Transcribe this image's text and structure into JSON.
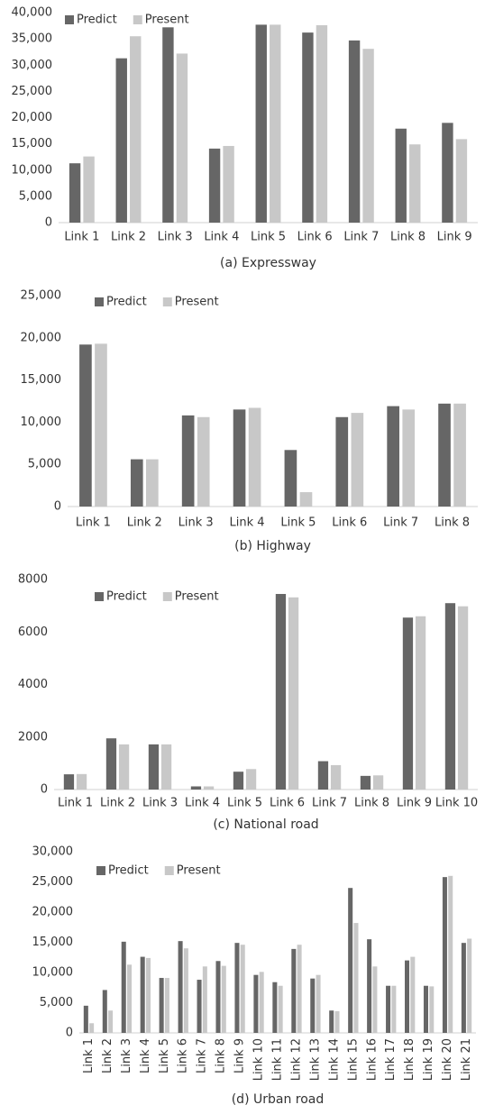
{
  "chart_data": [
    {
      "type": "bar",
      "caption": "(a) Expressway",
      "categories": [
        "Link 1",
        "Link 2",
        "Link 3",
        "Link 4",
        "Link 5",
        "Link 6",
        "Link 7",
        "Link 8",
        "Link 9"
      ],
      "series": [
        {
          "name": "Predict",
          "color": "#666666",
          "values": [
            11300,
            31300,
            37200,
            14100,
            37700,
            36200,
            34700,
            17900,
            19000
          ]
        },
        {
          "name": "Present",
          "color": "#c8c8c8",
          "values": [
            12600,
            35500,
            32200,
            14600,
            37700,
            37600,
            33100,
            14900,
            15900
          ]
        }
      ],
      "ylim": [
        0,
        40000
      ],
      "yticks": [
        0,
        {
          "value": 5000,
          "label": "5,000"
        },
        {
          "value": 10000,
          "label": "10,000"
        },
        {
          "value": 15000,
          "label": "15,000"
        },
        {
          "value": 20000,
          "label": "20,000"
        },
        {
          "value": 25000,
          "label": "25,000"
        },
        {
          "value": 30000,
          "label": "30,000"
        },
        {
          "value": 35000,
          "label": "35,000"
        },
        {
          "value": 40000,
          "label": "40,000"
        }
      ],
      "grid": false,
      "legend": "top-left"
    },
    {
      "type": "bar",
      "caption": "(b) Highway",
      "categories": [
        "Link 1",
        "Link 2",
        "Link 3",
        "Link 4",
        "Link 5",
        "Link 6",
        "Link 7",
        "Link 8"
      ],
      "series": [
        {
          "name": "Predict",
          "color": "#666666",
          "values": [
            19200,
            5600,
            10800,
            11500,
            6700,
            10600,
            11900,
            12200
          ]
        },
        {
          "name": "Present",
          "color": "#c8c8c8",
          "values": [
            19300,
            5600,
            10600,
            11700,
            1700,
            11100,
            11500,
            12200
          ]
        }
      ],
      "ylim": [
        0,
        25000
      ],
      "yticks": [
        0,
        {
          "value": 5000,
          "label": "5,000"
        },
        {
          "value": 10000,
          "label": "10,000"
        },
        {
          "value": 15000,
          "label": "15,000"
        },
        {
          "value": 20000,
          "label": "20,000"
        },
        {
          "value": 25000,
          "label": "25,000"
        }
      ],
      "grid": false,
      "legend": "top-left"
    },
    {
      "type": "bar",
      "caption": "(c) National road",
      "categories": [
        "Link 1",
        "Link 2",
        "Link 3",
        "Link 4",
        "Link 5",
        "Link 6",
        "Link 7",
        "Link 8",
        "Link 9",
        "Link 10"
      ],
      "series": [
        {
          "name": "Predict",
          "color": "#666666",
          "values": [
            580,
            1950,
            1720,
            120,
            680,
            7450,
            1080,
            520,
            6550,
            7100
          ]
        },
        {
          "name": "Present",
          "color": "#c8c8c8",
          "values": [
            590,
            1720,
            1720,
            120,
            780,
            7320,
            930,
            540,
            6600,
            6980
          ]
        }
      ],
      "ylim": [
        0,
        8000
      ],
      "yticks": [
        0,
        2000,
        4000,
        6000,
        8000
      ],
      "grid": false,
      "legend": "top-left"
    },
    {
      "type": "bar",
      "caption": "(d) Urban road",
      "categories": [
        "Link 1",
        "Link 2",
        "Link 3",
        "Link 4",
        "Link 5",
        "Link 6",
        "Link 7",
        "Link 8",
        "Link 9",
        "Link 10",
        "Link 11",
        "Link 12",
        "Link 13",
        "Link 14",
        "Link 15",
        "Link 16",
        "Link 17",
        "Link 18",
        "Link 19",
        "Link 20",
        "Link 21"
      ],
      "series": [
        {
          "name": "Predict",
          "color": "#666666",
          "values": [
            4500,
            7100,
            15100,
            12600,
            9100,
            15200,
            8800,
            11900,
            14900,
            9600,
            8400,
            13900,
            9000,
            3700,
            24000,
            15500,
            7800,
            12000,
            7800,
            25800,
            14900
          ]
        },
        {
          "name": "Present",
          "color": "#c8c8c8",
          "values": [
            1600,
            3700,
            11300,
            12400,
            9100,
            14000,
            11000,
            11100,
            14600,
            10100,
            7800,
            14600,
            9600,
            3600,
            18200,
            11000,
            7800,
            12600,
            7700,
            26000,
            15600
          ]
        }
      ],
      "ylim": [
        0,
        30000
      ],
      "yticks": [
        0,
        {
          "value": 5000,
          "label": "5,000"
        },
        {
          "value": 10000,
          "label": "10,000"
        },
        {
          "value": 15000,
          "label": "15,000"
        },
        {
          "value": 20000,
          "label": "20,000"
        },
        {
          "value": 25000,
          "label": "25,000"
        },
        {
          "value": 30000,
          "label": "30,000"
        }
      ],
      "grid": false,
      "legend": "top-left"
    }
  ]
}
